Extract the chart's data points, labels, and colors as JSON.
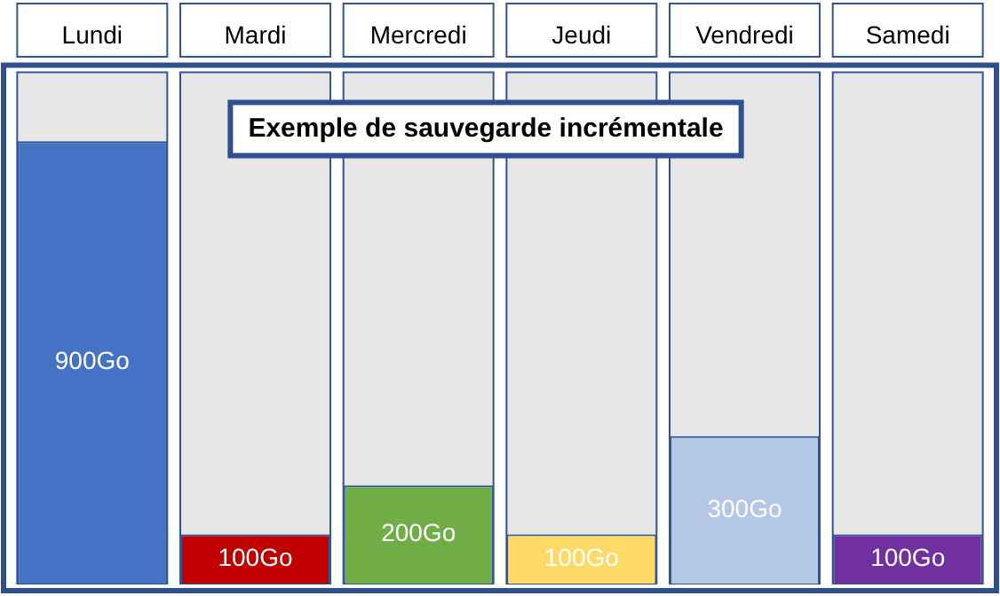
{
  "chart_data": {
    "type": "bar",
    "title": "Exemple de sauvegarde incrémentale",
    "categories": [
      "Lundi",
      "Mardi",
      "Mercredi",
      "Jeudi",
      "Vendredi",
      "Samedi"
    ],
    "values": [
      900,
      100,
      200,
      100,
      300,
      100
    ],
    "colors": [
      "#4472c4",
      "#c00000",
      "#70ad47",
      "#ffd966",
      "#b4c7e7",
      "#7030a0"
    ],
    "value_labels": [
      "900Go",
      "100Go",
      "200Go",
      "100Go",
      "300Go",
      "100Go"
    ],
    "ylim": [
      0,
      1040
    ],
    "grid": false,
    "legend": false
  }
}
